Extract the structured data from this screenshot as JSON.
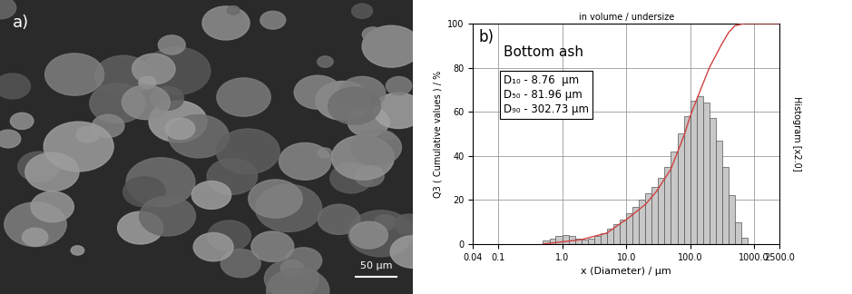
{
  "image_panel": {
    "label": "a)",
    "scale_bar": "50 μm"
  },
  "chart_data": {
    "type": "histogram",
    "label": "b)",
    "subtitle": "in volume / undersize",
    "xlabel": "x (Diameter) / μm",
    "ylabel": "Q3 ( Cumulative values ) / %",
    "y2label": "Histogram [x2.0]",
    "annotations": [
      "Bottom ash",
      "D₁₀ - 8.76  μm",
      "D₅₀ - 81.96 μm",
      "D₉₀ - 302.73 μm"
    ],
    "log": "x",
    "grid": true,
    "xlim": [
      0.04,
      2500.0
    ],
    "xticks": [
      0.04,
      0.1,
      1.0,
      10.0,
      100.0,
      1000.0,
      2500.0
    ],
    "ylim": [
      0,
      100
    ],
    "yticks": [
      0,
      20,
      40,
      60,
      80,
      100
    ],
    "bins": [
      0.5,
      0.63,
      0.79,
      1.0,
      1.26,
      1.58,
      2.0,
      2.51,
      3.16,
      3.98,
      5.01,
      6.31,
      7.94,
      10.0,
      12.6,
      15.8,
      20.0,
      25.1,
      31.6,
      39.8,
      50.1,
      63.1,
      79.4,
      100.0,
      126.0,
      158.0,
      200.0,
      251.0,
      316.0,
      398.0,
      501.0,
      631.0,
      794.0
    ],
    "counts": [
      1.5,
      2.5,
      3.5,
      4.0,
      3.5,
      2.5,
      2.0,
      2.5,
      3.5,
      5,
      7,
      9,
      11,
      14,
      17,
      20,
      23,
      26,
      30,
      35,
      42,
      50,
      58,
      65,
      67,
      64,
      57,
      47,
      35,
      22,
      10,
      3
    ],
    "color": "#c8c8c8",
    "series": [
      {
        "type": "line",
        "color": "#d04040",
        "x": [
          0.5,
          1.0,
          2.0,
          5.0,
          8.76,
          10.0,
          20.0,
          30.0,
          50.0,
          81.96,
          100.0,
          150.0,
          200.0,
          302.73,
          400.0,
          500.0,
          700.0,
          2500.0
        ],
        "values": [
          0,
          1,
          2,
          5,
          10,
          11,
          18,
          24,
          34,
          50,
          58,
          71,
          80,
          90,
          96,
          99,
          100,
          100
        ]
      }
    ]
  }
}
